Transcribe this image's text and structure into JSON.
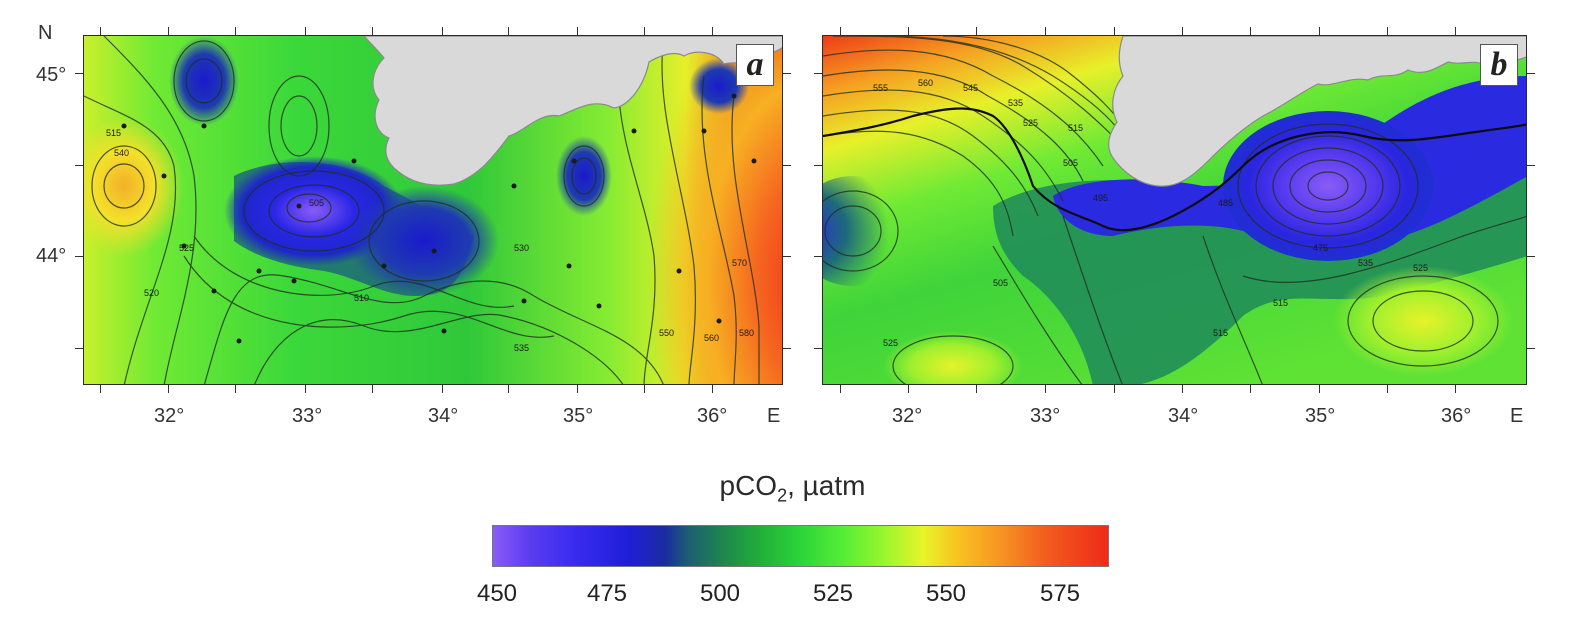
{
  "axes": {
    "north_label": "N",
    "east_label": "E",
    "lat_ticks": [
      "45°",
      "44°"
    ],
    "lon_ticks": [
      "32°",
      "33°",
      "34°",
      "35°",
      "36°"
    ]
  },
  "panels": [
    {
      "letter": "a",
      "contour_labels": [
        "515",
        "520",
        "525",
        "540",
        "505",
        "510",
        "530",
        "535",
        "550",
        "560",
        "570",
        "580"
      ]
    },
    {
      "letter": "b",
      "contour_labels": [
        "555",
        "560",
        "545",
        "535",
        "525",
        "515",
        "505",
        "495",
        "485",
        "475",
        "535",
        "525",
        "515",
        "505",
        "515",
        "525"
      ]
    }
  ],
  "colorbar": {
    "title_main": "pCO",
    "title_sub": "2",
    "title_unit": ", µatm",
    "labels": [
      "450",
      "475",
      "500",
      "525",
      "550",
      "575"
    ],
    "colors": {
      "low": "#8a5cf6",
      "blue": "#1f1ed8",
      "green": "#22b238",
      "yellow": "#e8f42a",
      "high": "#ee2b18"
    }
  }
}
